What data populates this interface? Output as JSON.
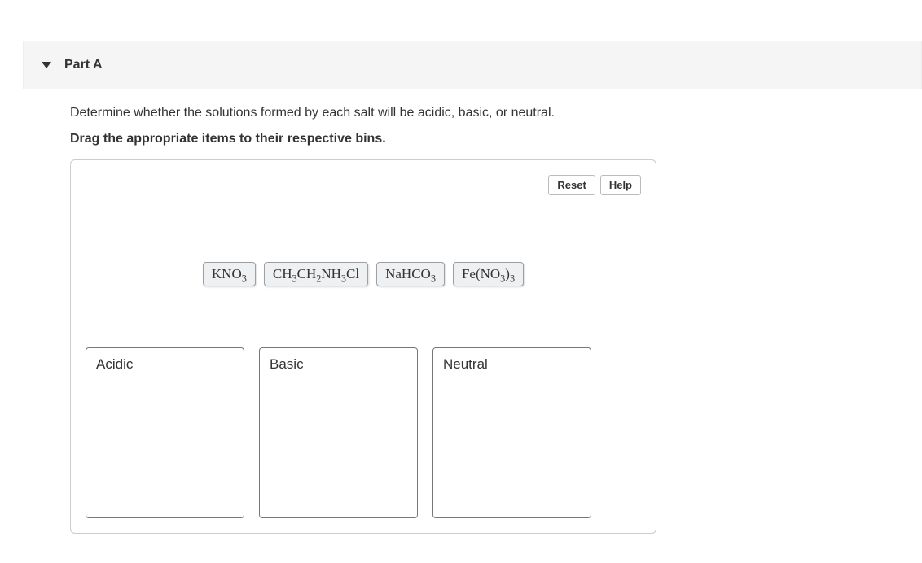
{
  "part": {
    "title": "Part A"
  },
  "question": {
    "prompt": "Determine whether the solutions formed by each salt will be acidic, basic, or neutral.",
    "instruction": "Drag the appropriate items to their respective bins."
  },
  "buttons": {
    "reset": "Reset",
    "help": "Help"
  },
  "items": [
    {
      "html": "KNO<sub>3</sub>"
    },
    {
      "html": "CH<sub>3</sub>CH<sub>2</sub>NH<sub>3</sub>Cl"
    },
    {
      "html": "NaHCO<sub>3</sub>"
    },
    {
      "html": "Fe(NO<sub>3</sub>)<sub>3</sub>"
    }
  ],
  "bins": [
    {
      "label": "Acidic"
    },
    {
      "label": "Basic"
    },
    {
      "label": "Neutral"
    }
  ],
  "colors": {
    "header_bg": "#f5f5f5",
    "border": "#cccccc",
    "item_bg": "#eef0f2",
    "item_border": "#9aa0a6",
    "bin_border": "#777777"
  }
}
